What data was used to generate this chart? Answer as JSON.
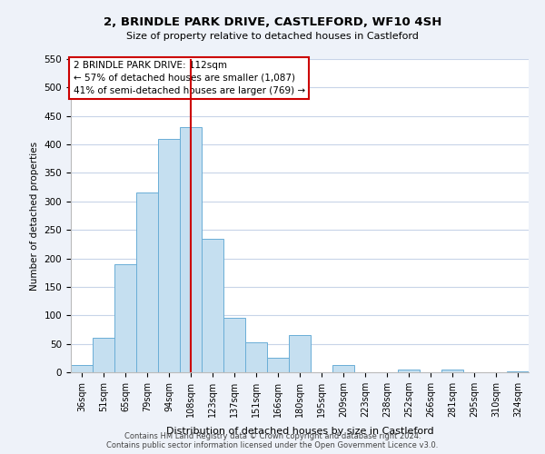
{
  "title": "2, BRINDLE PARK DRIVE, CASTLEFORD, WF10 4SH",
  "subtitle": "Size of property relative to detached houses in Castleford",
  "xlabel": "Distribution of detached houses by size in Castleford",
  "ylabel": "Number of detached properties",
  "bar_labels": [
    "36sqm",
    "51sqm",
    "65sqm",
    "79sqm",
    "94sqm",
    "108sqm",
    "123sqm",
    "137sqm",
    "151sqm",
    "166sqm",
    "180sqm",
    "195sqm",
    "209sqm",
    "223sqm",
    "238sqm",
    "252sqm",
    "266sqm",
    "281sqm",
    "295sqm",
    "310sqm",
    "324sqm"
  ],
  "bar_values": [
    12,
    60,
    190,
    315,
    410,
    430,
    235,
    95,
    52,
    25,
    65,
    0,
    12,
    0,
    0,
    5,
    0,
    5,
    0,
    0,
    2
  ],
  "bar_color": "#c5dff0",
  "bar_edge_color": "#6aaed6",
  "vline_x": 5,
  "vline_color": "#cc0000",
  "ylim": [
    0,
    550
  ],
  "yticks": [
    0,
    50,
    100,
    150,
    200,
    250,
    300,
    350,
    400,
    450,
    500,
    550
  ],
  "annotation_title": "2 BRINDLE PARK DRIVE: 112sqm",
  "annotation_line1": "← 57% of detached houses are smaller (1,087)",
  "annotation_line2": "41% of semi-detached houses are larger (769) →",
  "footer1": "Contains HM Land Registry data © Crown copyright and database right 2024.",
  "footer2": "Contains public sector information licensed under the Open Government Licence v3.0.",
  "bg_color": "#eef2f9",
  "plot_bg_color": "#ffffff",
  "grid_color": "#c8d4e8"
}
